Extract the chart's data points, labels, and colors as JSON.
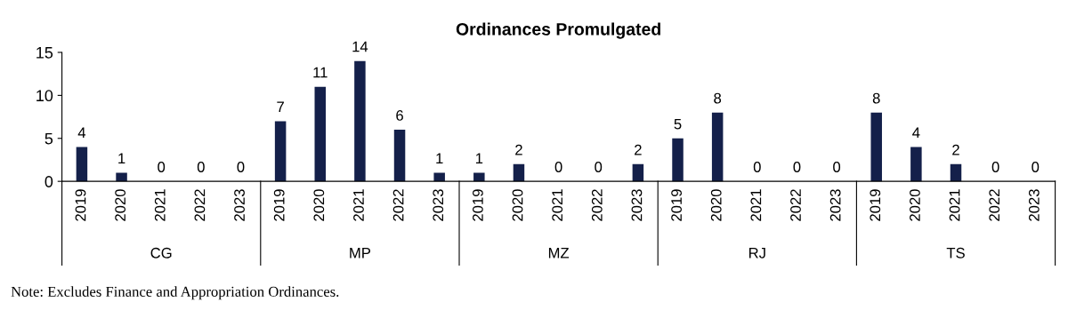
{
  "chart_data": {
    "type": "bar",
    "title": "Ordinances Promulgated",
    "categories": [
      "2019",
      "2020",
      "2021",
      "2022",
      "2023",
      "2019",
      "2020",
      "2021",
      "2022",
      "2023",
      "2019",
      "2020",
      "2021",
      "2022",
      "2023",
      "2019",
      "2020",
      "2021",
      "2022",
      "2023",
      "2019",
      "2020",
      "2021",
      "2022",
      "2023"
    ],
    "values": [
      4,
      1,
      0,
      0,
      0,
      7,
      11,
      14,
      6,
      1,
      1,
      2,
      0,
      0,
      2,
      5,
      8,
      0,
      0,
      0,
      8,
      4,
      2,
      0,
      0
    ],
    "color": "#14204a",
    "ylim": [
      0,
      15
    ],
    "yticks": [
      0,
      5,
      10,
      15
    ],
    "data_labels": true,
    "grid": false,
    "legend": false,
    "annotations": [
      "CG",
      "MP",
      "MZ",
      "RJ",
      "TS",
      "Note: Excludes Finance and Appropriation Ordinances."
    ]
  }
}
